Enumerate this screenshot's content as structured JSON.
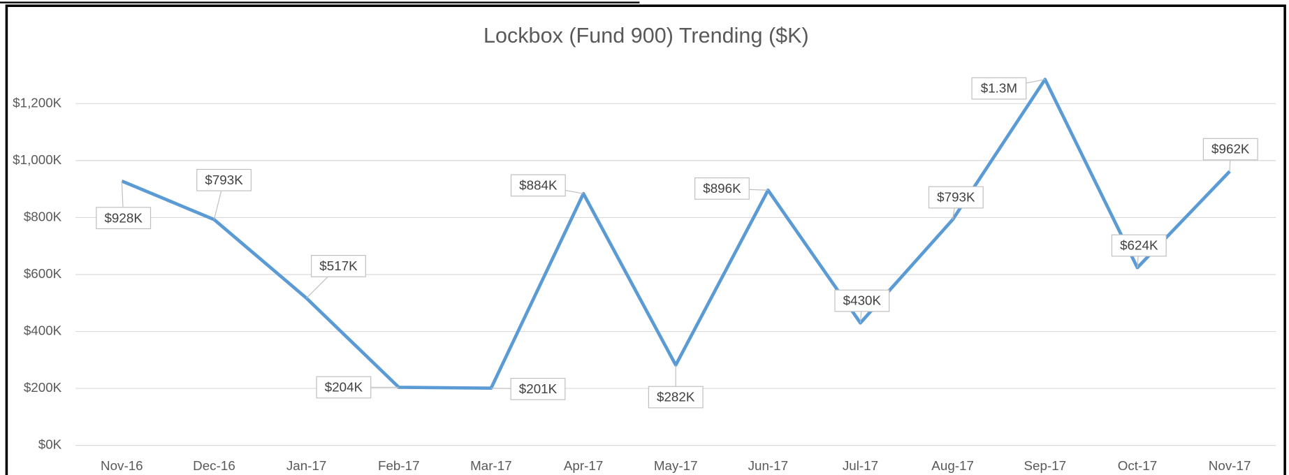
{
  "chart_data": {
    "type": "line",
    "title": "Lockbox (Fund 900) Trending ($K)",
    "categories": [
      "Nov-16",
      "Dec-16",
      "Jan-17",
      "Feb-17",
      "Mar-17",
      "Apr-17",
      "May-17",
      "Jun-17",
      "Jul-17",
      "Aug-17",
      "Sep-17",
      "Oct-17",
      "Nov-17"
    ],
    "series": [
      {
        "name": "Lockbox (Fund 900)",
        "color": "#5b9bd5",
        "values": [
          928,
          793,
          517,
          204,
          201,
          884,
          282,
          896,
          430,
          793,
          1285,
          624,
          962
        ],
        "value_labels": [
          "$928K",
          "$793K",
          "$517K",
          "$204K",
          "$201K",
          "$884K",
          "$282K",
          "$896K",
          "$430K",
          "$793K",
          "$1.3M",
          "$624K",
          "$962K"
        ]
      }
    ],
    "ylim": [
      0,
      1330
    ],
    "yticks": [
      {
        "value": 0,
        "label": "$0K"
      },
      {
        "value": 200,
        "label": "$200K"
      },
      {
        "value": 400,
        "label": "$400K"
      },
      {
        "value": 600,
        "label": "$600K"
      },
      {
        "value": 800,
        "label": "$800K"
      },
      {
        "value": 1000,
        "label": "$1,000K"
      },
      {
        "value": 1200,
        "label": "$1,200K"
      }
    ],
    "grid": true
  }
}
